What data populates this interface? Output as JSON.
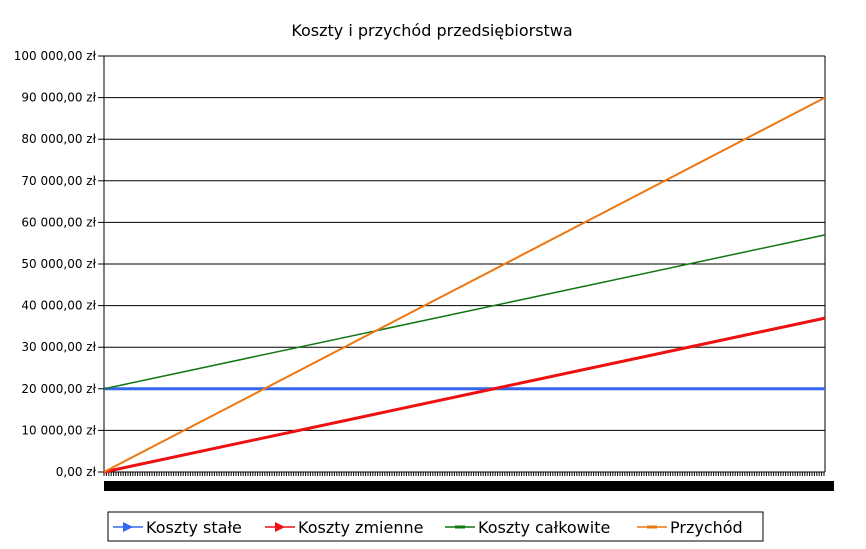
{
  "chart_data": {
    "type": "line",
    "title": "Koszty i przychód przedsiębiorstwa",
    "xlabel": "",
    "ylabel": "",
    "ylim": [
      0,
      100000
    ],
    "y_ticks": [
      "0,00 zł",
      "10 000,00 zł",
      "20 000,00 zł",
      "30 000,00 zł",
      "40 000,00 zł",
      "50 000,00 zł",
      "60 000,00 zł",
      "70 000,00 zł",
      "80 000,00 zł",
      "90 000,00 zł",
      "100 000,00 zł"
    ],
    "grid": true,
    "legend_position": "bottom",
    "x": [
      0,
      300
    ],
    "series": [
      {
        "name": "Koszty stałe",
        "values": [
          20000,
          20000
        ],
        "color": "#3366ee",
        "marker": "triangle-right"
      },
      {
        "name": "Koszty zmienne",
        "values": [
          0,
          37000
        ],
        "color": "#ee1111",
        "marker": "triangle-right"
      },
      {
        "name": "Koszty całkowite",
        "values": [
          20000,
          57000
        ],
        "color": "#117711",
        "marker": "dash"
      },
      {
        "name": "Przychód",
        "values": [
          0,
          90000
        ],
        "color": "#ee7711",
        "marker": "dash"
      }
    ]
  }
}
